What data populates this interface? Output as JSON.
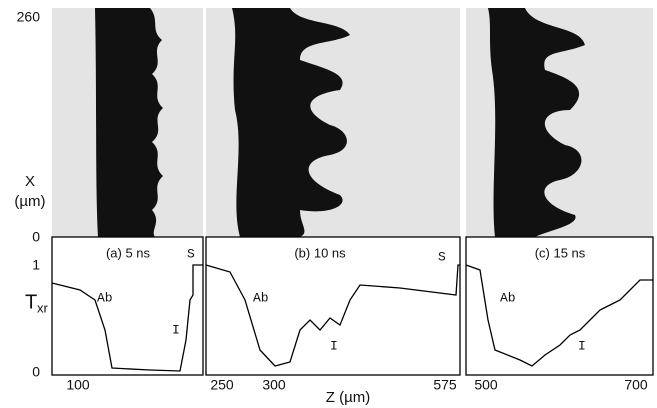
{
  "x_axis": {
    "symbol": "X",
    "unit": "(µm)",
    "ticks": [
      "260",
      "0"
    ]
  },
  "t_axis": {
    "symbol": "T",
    "subscript": "xr",
    "ticks": [
      "1",
      "0"
    ]
  },
  "z_axis_label": "Z (µm)",
  "panels": [
    {
      "caption": "(a) 5 ns",
      "ablator_label": "Ab",
      "interface_label": "I",
      "s_label": "S",
      "z_ticks": [
        "100",
        "250"
      ]
    },
    {
      "caption": "(b) 10 ns",
      "ablator_label": "Ab",
      "interface_label": "I",
      "s_label": "S",
      "z_ticks": [
        "300",
        "575"
      ]
    },
    {
      "caption": "(c) 15 ns",
      "ablator_label": "Ab",
      "interface_label": "I",
      "z_ticks": [
        "500",
        "700"
      ]
    }
  ]
}
